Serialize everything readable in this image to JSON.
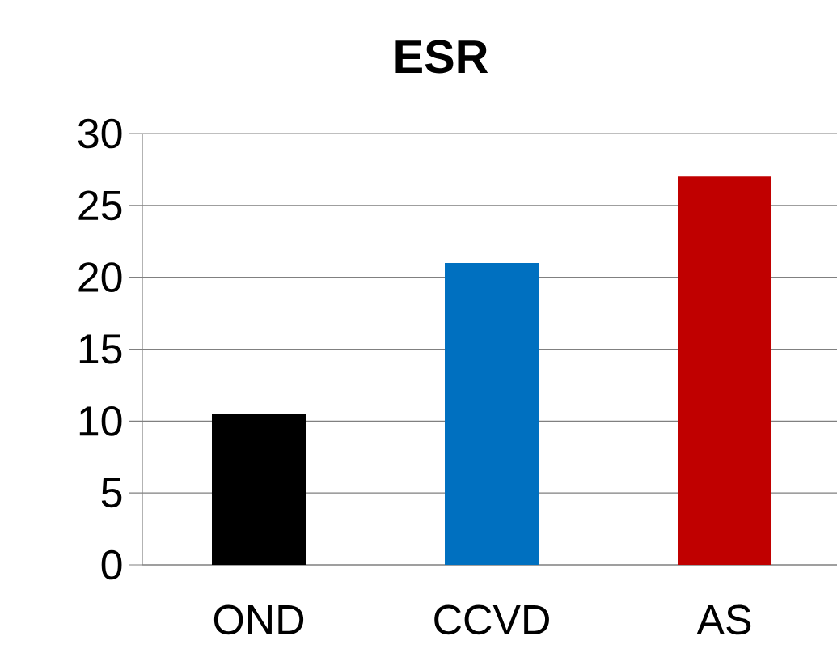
{
  "chart_data": {
    "type": "bar",
    "title": "ESR",
    "categories": [
      "OND",
      "CCVD",
      "AS"
    ],
    "values": [
      10.5,
      21,
      27
    ],
    "colors": [
      "#000000",
      "#0070c0",
      "#c00000"
    ],
    "ylim": [
      0,
      30
    ],
    "yticks": [
      0,
      5,
      10,
      15,
      20,
      25,
      30
    ],
    "grid": "y"
  }
}
